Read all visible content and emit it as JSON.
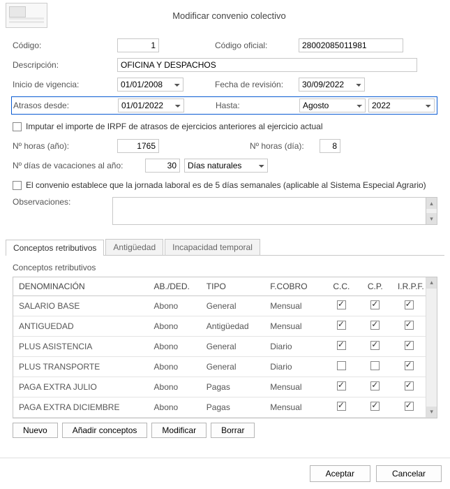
{
  "title": "Modificar convenio colectivo",
  "labels": {
    "codigo": "Código:",
    "codigo_oficial": "Código oficial:",
    "descripcion": "Descripción:",
    "inicio_vigencia": "Inicio de vigencia:",
    "fecha_revision": "Fecha de revisión:",
    "atrasos_desde": "Atrasos desde:",
    "hasta": "Hasta:",
    "imputar": "Imputar el importe de IRPF de atrasos de ejercicios anteriores al ejercicio actual",
    "horas_ano": "Nº horas (año):",
    "horas_dia": "Nº horas (día):",
    "dias_vac": "Nº días de vacaciones al año:",
    "dias_naturales": "Días naturales",
    "convenio_5dias": "El convenio establece que la jornada laboral es de 5 días semanales (aplicable al Sistema Especial Agrario)",
    "observaciones": "Observaciones:"
  },
  "fields": {
    "codigo": "1",
    "codigo_oficial": "28002085011981",
    "descripcion": "OFICINA Y DESPACHOS",
    "inicio_vigencia": "01/01/2008",
    "fecha_revision": "30/09/2022",
    "atrasos_desde": "01/01/2022",
    "hasta_mes": "Agosto",
    "hasta_ano": "2022",
    "horas_ano": "1765",
    "horas_dia": "8",
    "dias_vac": "30"
  },
  "tabs": [
    "Conceptos retributivos",
    "Antigüedad",
    "Incapacidad temporal"
  ],
  "grid": {
    "title": "Conceptos retributivos",
    "headers": {
      "den": "DENOMINACIÓN",
      "ab": "AB./DED.",
      "tipo": "TIPO",
      "fc": "F.COBRO",
      "cc": "C.C.",
      "cp": "C.P.",
      "irpf": "I.R.P.F."
    },
    "rows": [
      {
        "den": "SALARIO BASE",
        "ab": "Abono",
        "tipo": "General",
        "fc": "Mensual",
        "cc": true,
        "cp": true,
        "irpf": true
      },
      {
        "den": "ANTIGUEDAD",
        "ab": "Abono",
        "tipo": "Antigüedad",
        "fc": "Mensual",
        "cc": true,
        "cp": true,
        "irpf": true
      },
      {
        "den": "PLUS ASISTENCIA",
        "ab": "Abono",
        "tipo": "General",
        "fc": "Diario",
        "cc": true,
        "cp": true,
        "irpf": true
      },
      {
        "den": "PLUS TRANSPORTE",
        "ab": "Abono",
        "tipo": "General",
        "fc": "Diario",
        "cc": false,
        "cp": false,
        "irpf": true
      },
      {
        "den": "PAGA EXTRA JULIO",
        "ab": "Abono",
        "tipo": "Pagas",
        "fc": "Mensual",
        "cc": true,
        "cp": true,
        "irpf": true
      },
      {
        "den": "PAGA EXTRA DICIEMBRE",
        "ab": "Abono",
        "tipo": "Pagas",
        "fc": "Mensual",
        "cc": true,
        "cp": true,
        "irpf": true
      }
    ]
  },
  "buttons": {
    "nuevo": "Nuevo",
    "anadir": "Añadir conceptos",
    "modificar": "Modificar",
    "borrar": "Borrar",
    "aceptar": "Aceptar",
    "cancelar": "Cancelar"
  }
}
